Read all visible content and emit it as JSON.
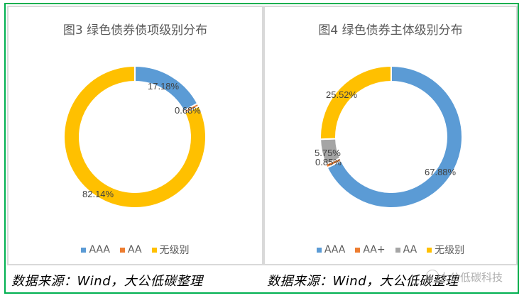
{
  "colors": {
    "border_green": "#00B050",
    "panel_border": "#D9D9D9",
    "AAA": "#5B9BD5",
    "AA_orange": "#ED7D31",
    "AA_gray": "#A5A5A5",
    "unrated": "#FFC000",
    "label": "#404040"
  },
  "left": {
    "title": "图3  绿色债券债项级别分布",
    "legend": [
      {
        "label": "AAA",
        "color": "#5B9BD5"
      },
      {
        "label": "AA",
        "color": "#ED7D31"
      },
      {
        "label": "无级别",
        "color": "#FFC000"
      }
    ],
    "source": "数据来源：Wind，大公低碳整理"
  },
  "right": {
    "title": "图4  绿色债券主体级别分布",
    "legend": [
      {
        "label": "AAA",
        "color": "#5B9BD5"
      },
      {
        "label": "AA+",
        "color": "#ED7D31"
      },
      {
        "label": "AA",
        "color": "#A5A5A5"
      },
      {
        "label": "无级别",
        "color": "#FFC000"
      }
    ],
    "source": "数据来源：Wind，大公低碳整理"
  },
  "watermark": "大公低碳科技",
  "chart_data": [
    {
      "type": "pie",
      "subtype": "doughnut",
      "title": "图3  绿色债券债项级别分布",
      "categories": [
        "AAA",
        "AA",
        "无级别"
      ],
      "values": [
        17.18,
        0.68,
        82.14
      ],
      "labels": [
        "17.18%",
        "0.68%",
        "82.14%"
      ],
      "colors": [
        "#5B9BD5",
        "#ED7D31",
        "#FFC000"
      ],
      "legend_position": "bottom"
    },
    {
      "type": "pie",
      "subtype": "doughnut",
      "title": "图4  绿色债券主体级别分布",
      "categories": [
        "AAA",
        "AA+",
        "AA",
        "无级别"
      ],
      "values": [
        67.88,
        0.85,
        5.75,
        25.52
      ],
      "labels": [
        "67.88%",
        "0.85%",
        "5.75%",
        "25.52%"
      ],
      "colors": [
        "#5B9BD5",
        "#ED7D31",
        "#A5A5A5",
        "#FFC000"
      ],
      "legend_position": "bottom"
    }
  ]
}
